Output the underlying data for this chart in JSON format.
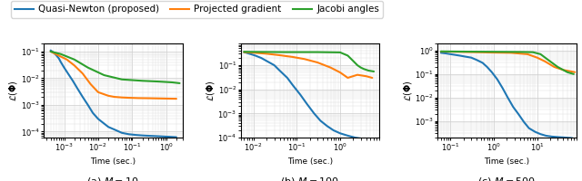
{
  "legend_labels": [
    "Quasi-Newton (proposed)",
    "Projected gradient",
    "Jacobi angles"
  ],
  "legend_colors": [
    "#1f77b4",
    "#ff7f0e",
    "#2ca02c"
  ],
  "line_width": 1.5,
  "panel_a": {
    "title": "(a) $M = 10$",
    "xlabel": "Time (sec.)",
    "ylabel": "$\\mathcal{L}(\\mathbf{\\Phi})$",
    "xlim": [
      0.00025,
      3.0
    ],
    "ylim": [
      6e-05,
      0.2
    ],
    "blue": {
      "x": [
        0.0004,
        0.0005,
        0.0006,
        0.0007,
        0.0008,
        0.001,
        0.0013,
        0.0018,
        0.0025,
        0.0035,
        0.005,
        0.007,
        0.01,
        0.015,
        0.02,
        0.03,
        0.05,
        0.08,
        0.13,
        0.2,
        0.3,
        0.5,
        0.8,
        1.3,
        2.0
      ],
      "y": [
        0.11,
        0.09,
        0.07,
        0.055,
        0.04,
        0.025,
        0.015,
        0.008,
        0.004,
        0.002,
        0.001,
        0.0005,
        0.0003,
        0.0002,
        0.00015,
        0.00012,
        9e-05,
        8e-05,
        7.5e-05,
        7.2e-05,
        7e-05,
        6.8e-05,
        6.6e-05,
        6.4e-05,
        6.2e-05
      ]
    },
    "orange": {
      "x": [
        0.0004,
        0.0007,
        0.0012,
        0.002,
        0.0035,
        0.006,
        0.01,
        0.015,
        0.02,
        0.03,
        0.05,
        0.08,
        0.15,
        0.3,
        0.6,
        1.2,
        2.0
      ],
      "y": [
        0.1,
        0.07,
        0.05,
        0.03,
        0.015,
        0.006,
        0.003,
        0.0025,
        0.0022,
        0.002,
        0.0019,
        0.00185,
        0.0018,
        0.00178,
        0.00175,
        0.00172,
        0.0017
      ]
    },
    "green": {
      "x": [
        0.0004,
        0.0008,
        0.002,
        0.005,
        0.015,
        0.05,
        0.2,
        0.6,
        1.5,
        2.5
      ],
      "y": [
        0.1,
        0.08,
        0.05,
        0.025,
        0.013,
        0.009,
        0.008,
        0.0075,
        0.007,
        0.0065
      ]
    }
  },
  "panel_b": {
    "title": "(b) $M = 100$",
    "xlabel": "Time (sec.)",
    "ylabel": "$\\mathcal{L}(\\mathbf{\\Phi})$",
    "xlim": [
      0.005,
      8.0
    ],
    "ylim": [
      0.0001,
      0.8
    ],
    "blue": {
      "x": [
        0.006,
        0.008,
        0.011,
        0.015,
        0.02,
        0.03,
        0.04,
        0.06,
        0.08,
        0.12,
        0.17,
        0.25,
        0.35,
        0.5,
        0.7,
        1.0,
        1.5,
        2.2,
        3.2,
        4.5,
        6.5
      ],
      "y": [
        0.35,
        0.3,
        0.25,
        0.2,
        0.15,
        0.1,
        0.06,
        0.03,
        0.015,
        0.006,
        0.0025,
        0.001,
        0.0005,
        0.0003,
        0.0002,
        0.00015,
        0.00012,
        0.0001,
        9e-05,
        8.5e-05,
        8e-05
      ]
    },
    "orange": {
      "x": [
        0.006,
        0.01,
        0.02,
        0.04,
        0.08,
        0.15,
        0.3,
        0.6,
        1.0,
        1.5,
        2.5,
        4.0,
        5.5
      ],
      "y": [
        0.35,
        0.33,
        0.3,
        0.26,
        0.22,
        0.18,
        0.13,
        0.08,
        0.05,
        0.03,
        0.04,
        0.035,
        0.03
      ]
    },
    "green": {
      "x": [
        0.006,
        0.05,
        0.3,
        1.0,
        1.5,
        2.0,
        2.5,
        3.0,
        3.5,
        4.5,
        6.0
      ],
      "y": [
        0.36,
        0.35,
        0.35,
        0.34,
        0.25,
        0.15,
        0.1,
        0.08,
        0.07,
        0.06,
        0.055
      ]
    }
  },
  "panel_c": {
    "title": "(c) $M = 500$",
    "xlabel": "Time (sec.)",
    "ylabel": "$\\mathcal{L}(\\mathbf{\\Phi})$",
    "xlim": [
      0.05,
      80.0
    ],
    "ylim": [
      0.0002,
      2.0
    ],
    "blue": {
      "x": [
        0.06,
        0.08,
        0.1,
        0.13,
        0.17,
        0.22,
        0.3,
        0.4,
        0.55,
        0.7,
        0.9,
        1.2,
        1.6,
        2.1,
        2.8,
        3.7,
        5.0,
        6.5,
        9.0,
        12.0,
        16.0,
        22.0,
        30.0,
        45.0,
        65.0
      ],
      "y": [
        0.8,
        0.75,
        0.7,
        0.65,
        0.6,
        0.55,
        0.5,
        0.4,
        0.3,
        0.2,
        0.12,
        0.06,
        0.025,
        0.01,
        0.004,
        0.002,
        0.0009,
        0.0005,
        0.00035,
        0.00028,
        0.00024,
        0.00022,
        0.00021,
        0.0002,
        0.00019
      ]
    },
    "orange": {
      "x": [
        0.06,
        0.15,
        0.4,
        1.0,
        2.5,
        6.0,
        10.0,
        15.0,
        25.0,
        40.0,
        60.0,
        75.0
      ],
      "y": [
        0.9,
        0.88,
        0.85,
        0.82,
        0.8,
        0.7,
        0.5,
        0.35,
        0.2,
        0.15,
        0.13,
        0.12
      ]
    },
    "green": {
      "x": [
        0.06,
        0.2,
        0.6,
        1.5,
        4.0,
        8.0,
        12.0,
        18.0,
        30.0,
        50.0,
        70.0
      ],
      "y": [
        0.92,
        0.9,
        0.89,
        0.88,
        0.87,
        0.85,
        0.7,
        0.4,
        0.2,
        0.12,
        0.1
      ]
    }
  }
}
